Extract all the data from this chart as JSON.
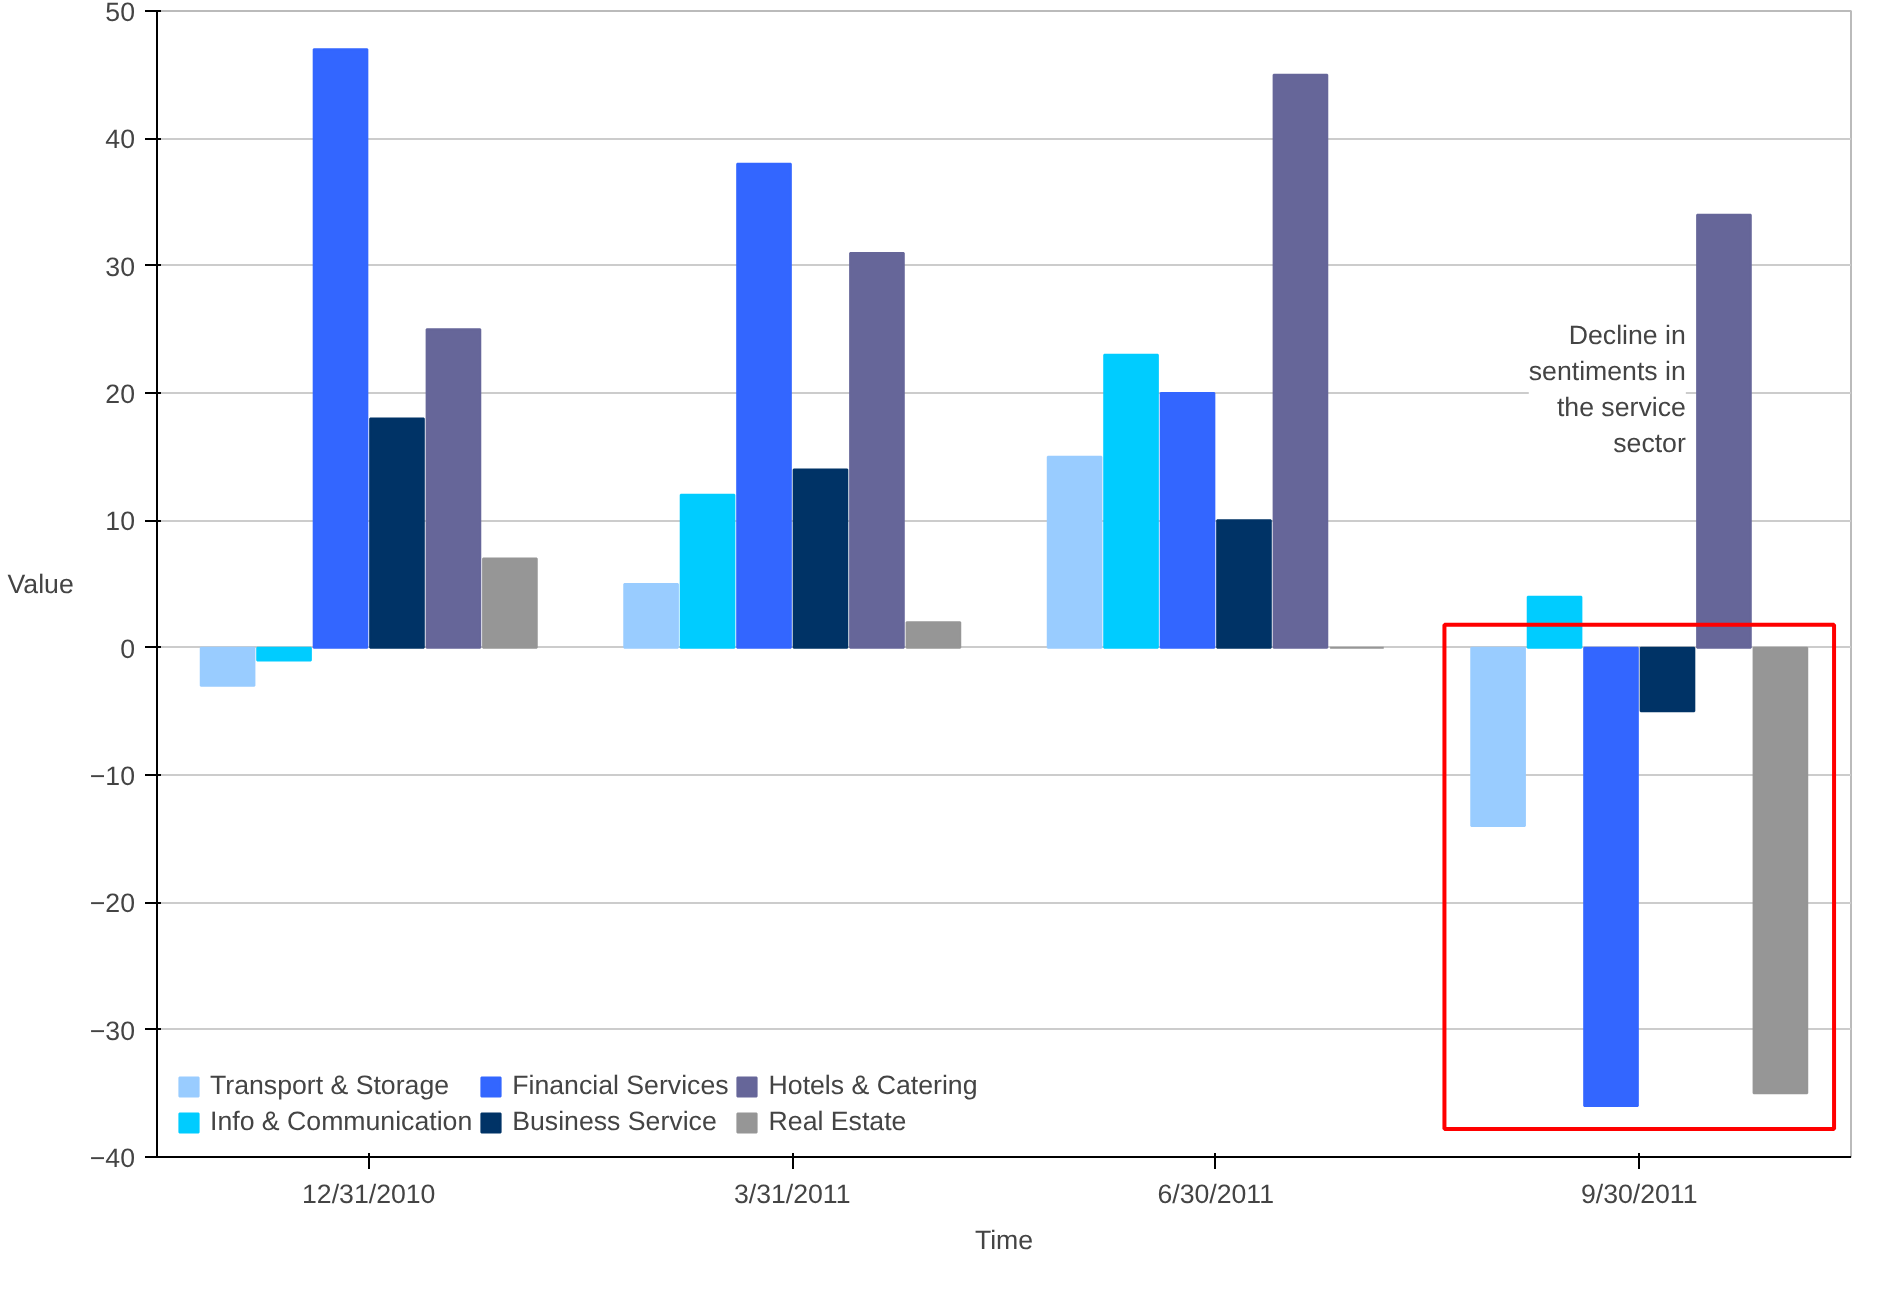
{
  "chart_data": {
    "type": "bar",
    "xlabel": "Time",
    "ylabel": "Value",
    "categories": [
      "12/31/2010",
      "3/31/2011",
      "6/30/2011",
      "9/30/2011"
    ],
    "series": [
      {
        "name": "Transport & Storage",
        "color": "#99ccff",
        "values": [
          -3,
          5,
          15,
          -14
        ]
      },
      {
        "name": "Info & Communication",
        "color": "#00ccff",
        "values": [
          -1,
          12,
          23,
          4
        ]
      },
      {
        "name": "Financial Services",
        "color": "#3366ff",
        "values": [
          47,
          38,
          20,
          -36
        ]
      },
      {
        "name": "Business Service",
        "color": "#003366",
        "values": [
          18,
          14,
          10,
          -5
        ]
      },
      {
        "name": "Hotels & Catering",
        "color": "#666699",
        "values": [
          25,
          31,
          45,
          34
        ]
      },
      {
        "name": "Real Estate",
        "color": "#969696",
        "values": [
          7,
          2,
          0,
          -35
        ]
      }
    ],
    "ylim": [
      -40,
      50
    ],
    "yticks": [
      -40,
      -30,
      -20,
      -10,
      0,
      10,
      20,
      30,
      40,
      50
    ],
    "grid": "y",
    "legend": "bottom left",
    "annotations": [
      "Decline in sentiments in the service sector"
    ]
  }
}
